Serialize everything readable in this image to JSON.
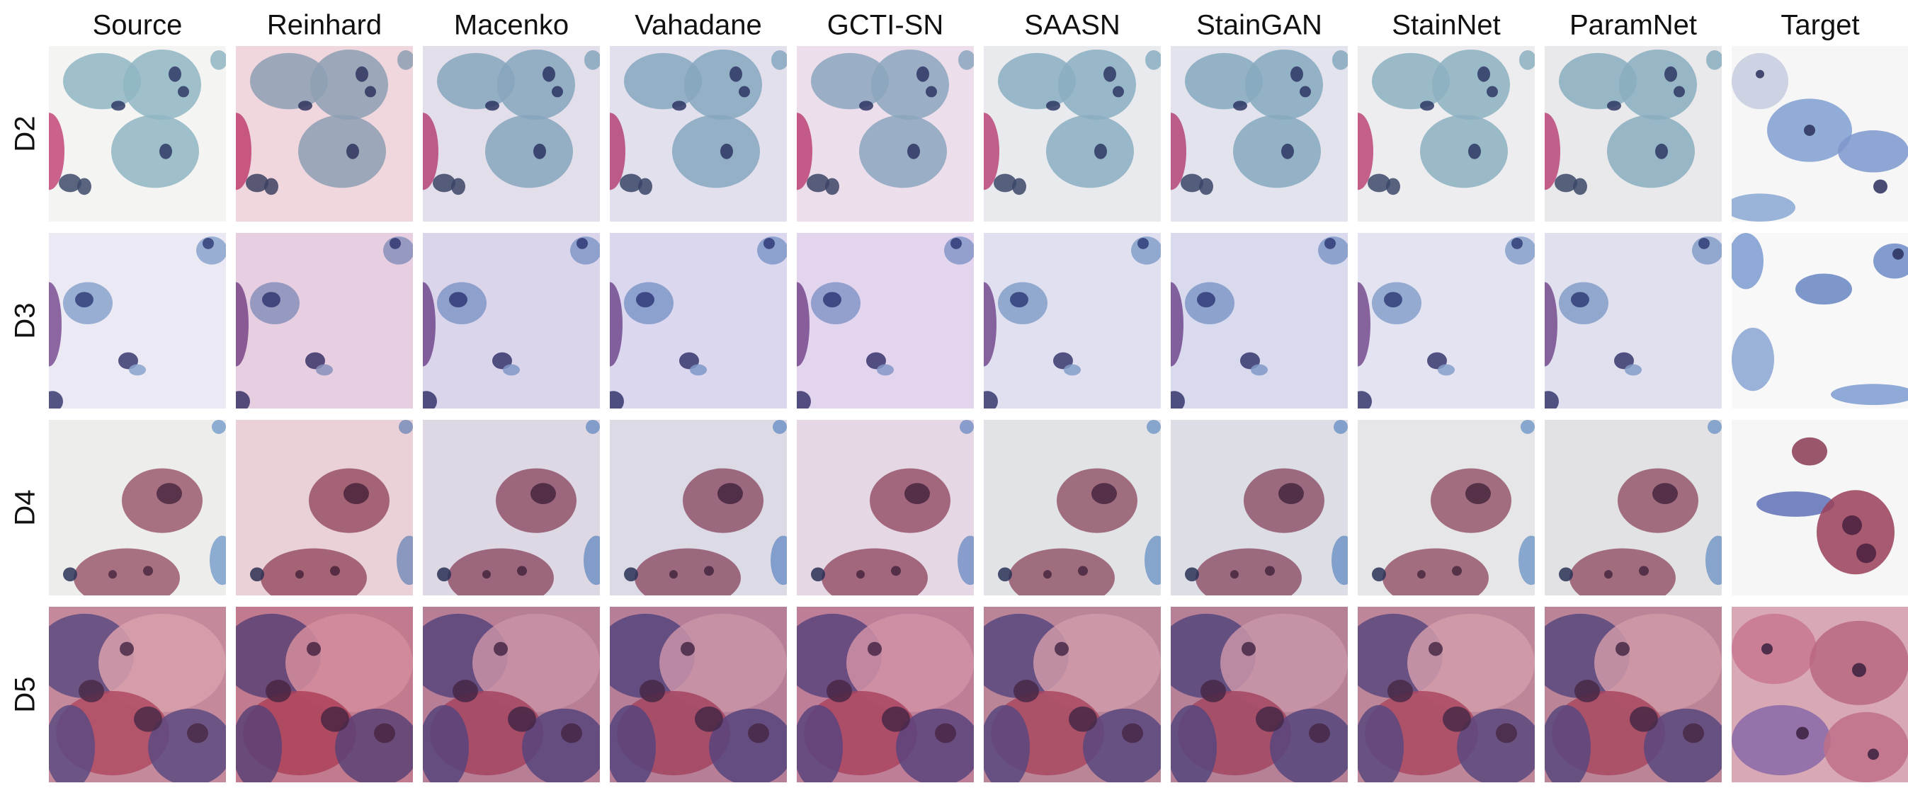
{
  "columns": [
    "Source",
    "Reinhard",
    "Macenko",
    "Vahadane",
    "GCTI-SN",
    "SAASN",
    "StainGAN",
    "StainNet",
    "ParamNet",
    "Target"
  ],
  "rows": [
    "D2",
    "D3",
    "D4",
    "D5"
  ]
}
